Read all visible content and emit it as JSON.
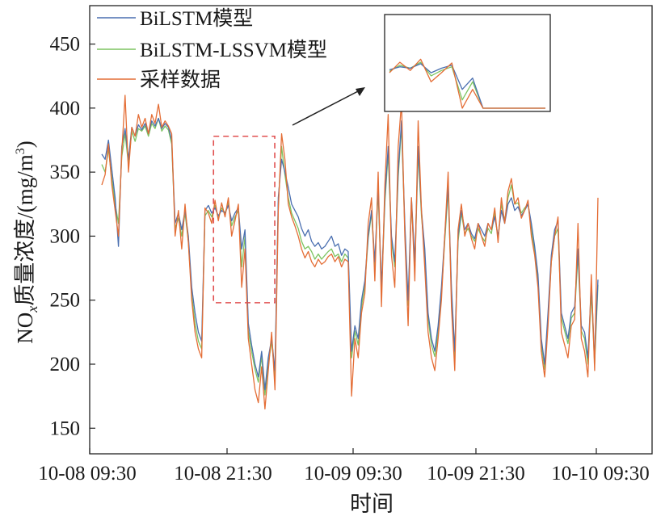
{
  "chart_data": {
    "type": "line",
    "xlabel": "时间",
    "ylabel": "NOx质量浓度/(mg/m3)",
    "ylabel_parts": {
      "pre": "NO",
      "sub": "x",
      "mid": "质量浓度/(mg/m",
      "sup": "3",
      "post": ")"
    },
    "ylim": [
      130,
      480
    ],
    "yticks": [
      150,
      200,
      250,
      300,
      350,
      400,
      450
    ],
    "xticks": [
      "10-08 09:30",
      "10-08 21:30",
      "10-09 09:30",
      "10-09 21:30",
      "10-10 09:30"
    ],
    "grid": false,
    "legend_position": "top-left",
    "colors": {
      "BiLSTM模型": "#4a6fb0",
      "BiLSTM-LSSVM模型": "#7dc461",
      "采样数据": "#e46d35",
      "highlight": "#e05050",
      "inset_frame": "#222222"
    },
    "series": [
      {
        "name": "BiLSTM模型",
        "values": [
          364,
          360,
          375,
          352,
          330,
          292,
          370,
          384,
          360,
          385,
          378,
          387,
          383,
          388,
          380,
          390,
          386,
          392,
          384,
          388,
          385,
          375,
          310,
          318,
          305,
          320,
          300,
          260,
          240,
          225,
          218,
          320,
          324,
          318,
          322,
          316,
          320,
          318,
          324,
          312,
          318,
          322,
          290,
          305,
          232,
          215,
          200,
          190,
          210,
          180,
          205,
          220,
          195,
          330,
          360,
          350,
          338,
          325,
          320,
          315,
          306,
          300,
          305,
          296,
          292,
          295,
          290,
          292,
          296,
          300,
          292,
          294,
          285,
          290,
          288,
          210,
          230,
          220,
          250,
          265,
          300,
          320,
          280,
          340,
          260,
          330,
          370,
          300,
          280,
          350,
          390,
          310,
          250,
          330,
          280,
          370,
          320,
          290,
          240,
          220,
          210,
          230,
          260,
          300,
          340,
          260,
          210,
          300,
          320,
          305,
          310,
          302,
          298,
          310,
          305,
          300,
          310,
          305,
          315,
          300,
          320,
          310,
          325,
          330,
          320,
          323,
          316,
          320,
          325,
          310,
          292,
          270,
          220,
          200,
          240,
          285,
          305,
          312,
          240,
          230,
          220,
          240,
          245,
          290,
          230,
          225,
          205,
          262,
          205,
          266
        ]
      },
      {
        "name": "BiLSTM-LSSVM模型",
        "values": [
          356,
          350,
          368,
          345,
          325,
          310,
          362,
          380,
          356,
          382,
          374,
          384,
          382,
          386,
          378,
          388,
          384,
          392,
          382,
          386,
          383,
          372,
          306,
          314,
          300,
          318,
          296,
          254,
          232,
          218,
          212,
          316,
          320,
          315,
          324,
          314,
          322,
          318,
          326,
          308,
          315,
          320,
          276,
          300,
          226,
          210,
          196,
          186,
          206,
          176,
          200,
          218,
          190,
          325,
          370,
          348,
          330,
          318,
          312,
          306,
          296,
          290,
          292,
          288,
          282,
          286,
          282,
          285,
          288,
          290,
          284,
          286,
          280,
          286,
          283,
          205,
          226,
          215,
          245,
          262,
          298,
          318,
          276,
          336,
          256,
          326,
          365,
          296,
          276,
          346,
          386,
          306,
          246,
          325,
          276,
          366,
          316,
          286,
          236,
          215,
          206,
          225,
          255,
          296,
          336,
          256,
          206,
          296,
          318,
          302,
          306,
          300,
          296,
          306,
          300,
          296,
          306,
          302,
          318,
          298,
          325,
          312,
          330,
          340,
          325,
          326,
          318,
          322,
          325,
          306,
          288,
          266,
          216,
          196,
          236,
          280,
          300,
          306,
          236,
          226,
          216,
          236,
          240,
          286,
          226,
          220,
          200,
          256,
          200,
          262
        ]
      },
      {
        "name": "采样数据",
        "values": [
          340,
          348,
          372,
          340,
          320,
          300,
          365,
          410,
          350,
          385,
          378,
          395,
          385,
          392,
          380,
          395,
          388,
          403,
          385,
          390,
          386,
          380,
          300,
          320,
          290,
          325,
          295,
          250,
          225,
          212,
          205,
          322,
          318,
          310,
          328,
          312,
          326,
          315,
          330,
          300,
          312,
          325,
          260,
          290,
          220,
          200,
          180,
          170,
          198,
          165,
          195,
          225,
          180,
          320,
          380,
          360,
          325,
          315,
          308,
          300,
          290,
          283,
          288,
          280,
          276,
          282,
          278,
          280,
          284,
          286,
          280,
          284,
          276,
          282,
          280,
          175,
          220,
          205,
          240,
          255,
          310,
          330,
          265,
          350,
          245,
          340,
          395,
          285,
          260,
          370,
          405,
          300,
          230,
          330,
          265,
          390,
          320,
          275,
          225,
          205,
          195,
          220,
          250,
          300,
          350,
          245,
          195,
          305,
          325,
          300,
          310,
          298,
          290,
          310,
          300,
          292,
          310,
          305,
          322,
          295,
          330,
          310,
          335,
          345,
          325,
          330,
          314,
          320,
          328,
          300,
          285,
          260,
          210,
          190,
          230,
          280,
          300,
          315,
          225,
          215,
          205,
          230,
          235,
          310,
          220,
          210,
          190,
          270,
          195,
          330
        ]
      }
    ],
    "highlight_box": {
      "x_index": [
        35,
        50
      ],
      "y_range": [
        248,
        378
      ]
    },
    "inset": {
      "from_index": 35,
      "to_index": 50,
      "y_range": [
        265,
        385
      ]
    }
  },
  "legend": {
    "entries": [
      "BiLSTM模型",
      "BiLSTM-LSSVM模型",
      "采样数据"
    ]
  }
}
